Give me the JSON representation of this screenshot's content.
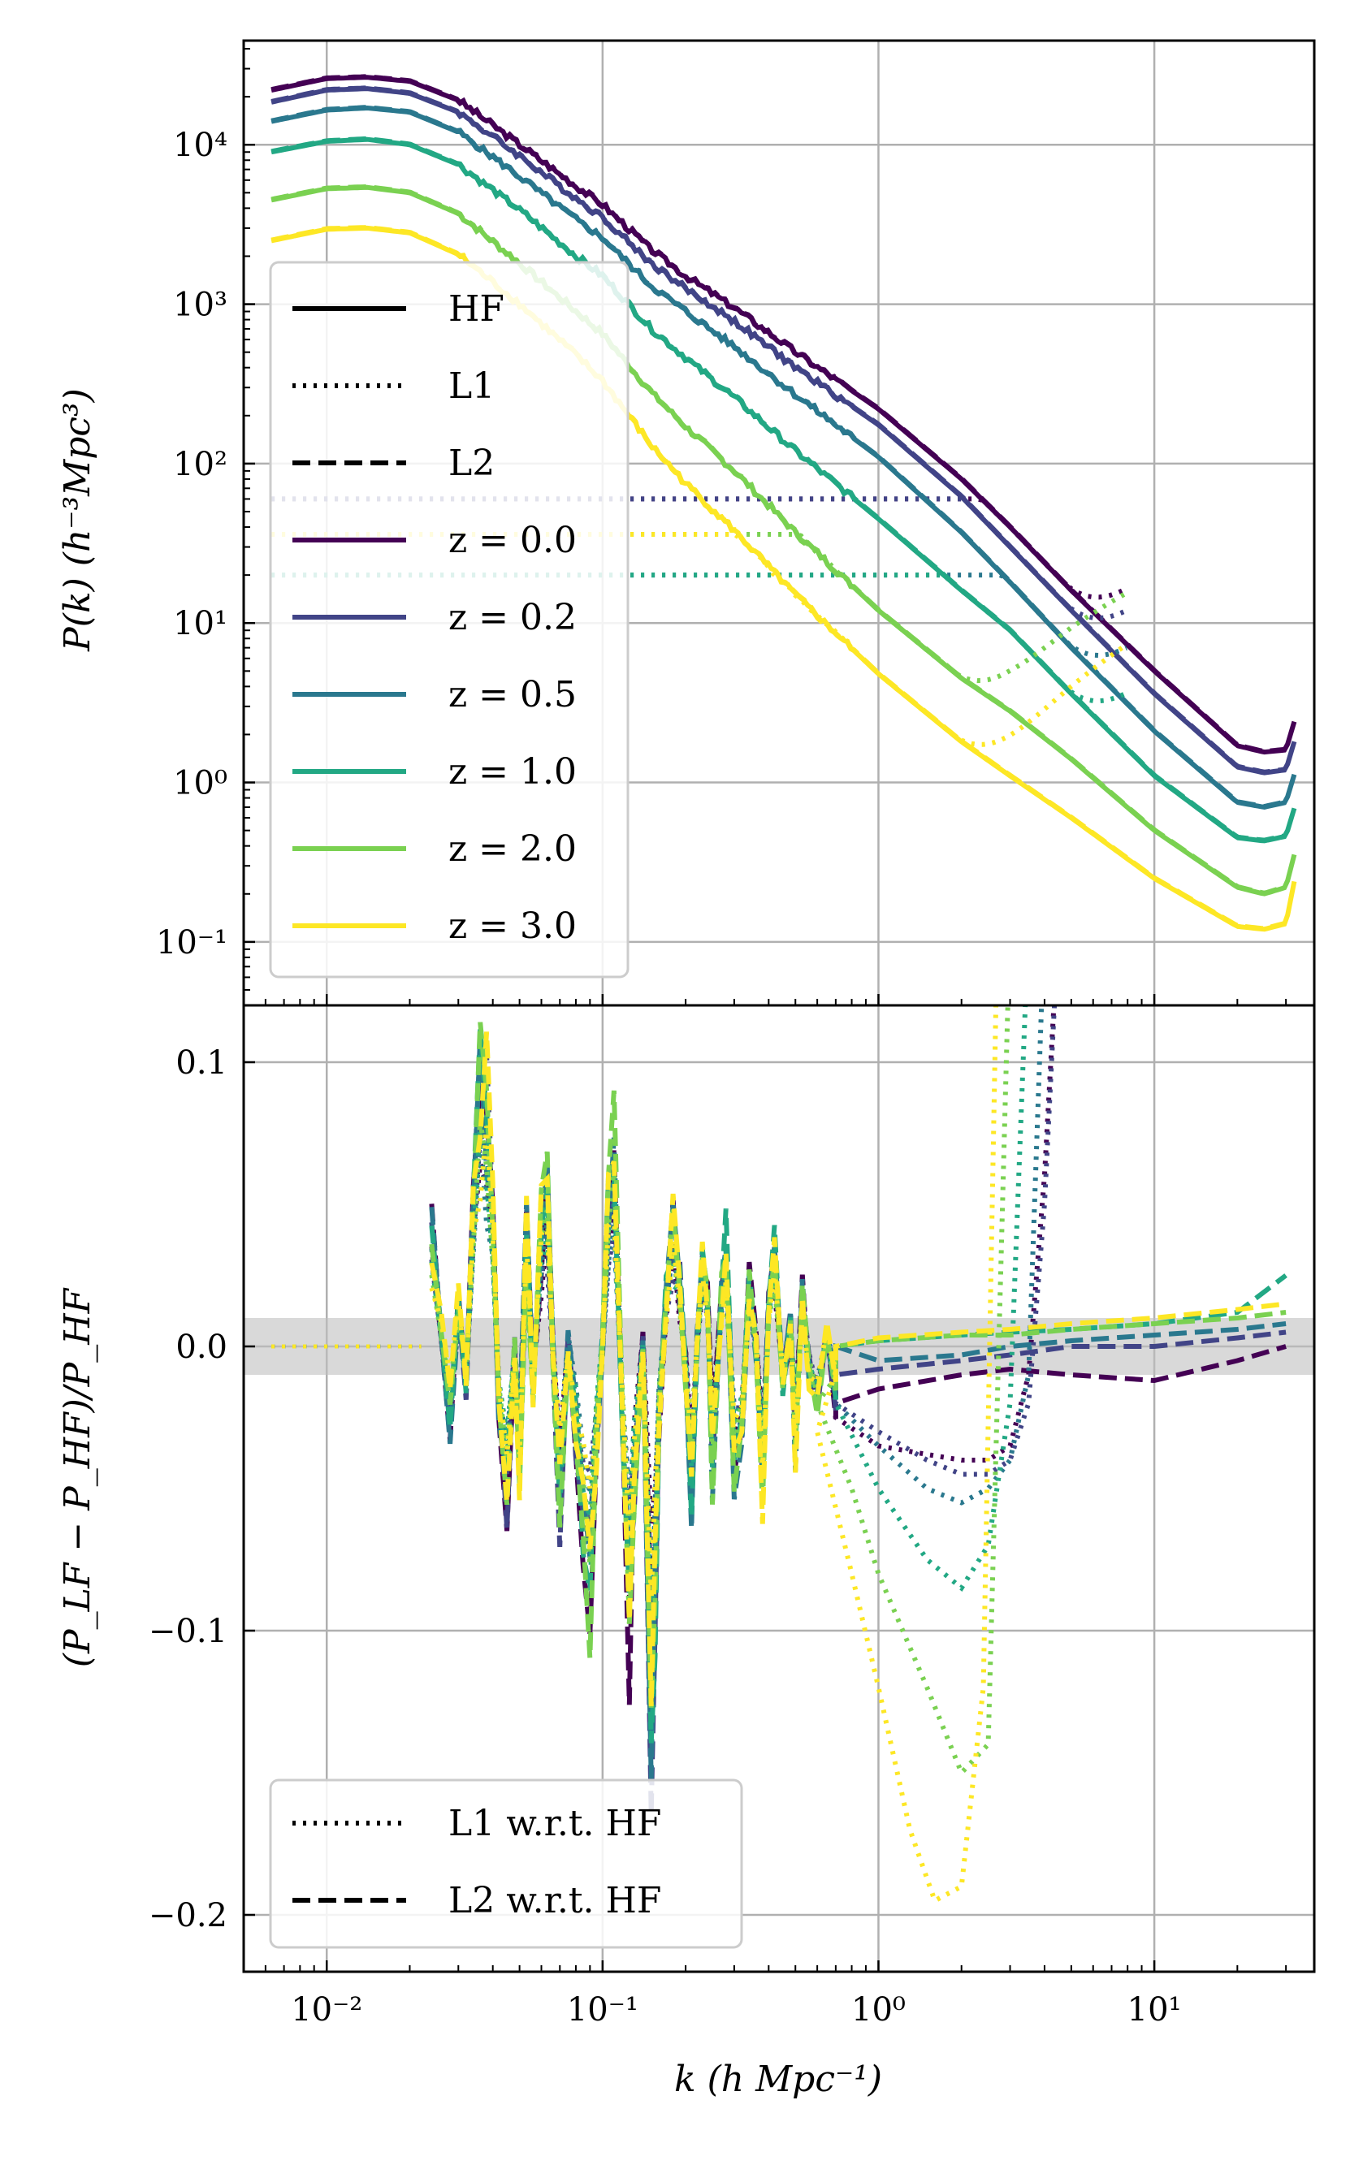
{
  "chart_data": [
    {
      "type": "line",
      "panel": "top",
      "xscale": "log",
      "yscale": "log",
      "xlim": [
        0.005,
        38
      ],
      "ylim": [
        0.04,
        45000
      ],
      "ylabel": "P(k) (h⁻³Mpc³)",
      "yticks": [
        {
          "v": 0.1,
          "label": "10⁻¹"
        },
        {
          "v": 1,
          "label": "10⁰"
        },
        {
          "v": 10,
          "label": "10¹"
        },
        {
          "v": 100,
          "label": "10²"
        },
        {
          "v": 1000,
          "label": "10³"
        },
        {
          "v": 10000,
          "label": "10⁴"
        }
      ],
      "grid": true,
      "legend_position": "lower-left",
      "legend": [
        {
          "label": "HF",
          "style": "solid",
          "color": "#000000"
        },
        {
          "label": "L1",
          "style": "dotted",
          "color": "#000000"
        },
        {
          "label": "L2",
          "style": "dashed",
          "color": "#000000"
        },
        {
          "label": "z = 0.0",
          "style": "solid",
          "color": "#440154"
        },
        {
          "label": "z = 0.2",
          "style": "solid",
          "color": "#414487"
        },
        {
          "label": "z = 0.5",
          "style": "solid",
          "color": "#2a788e"
        },
        {
          "label": "z = 1.0",
          "style": "solid",
          "color": "#22a884"
        },
        {
          "label": "z = 2.0",
          "style": "solid",
          "color": "#7ad151"
        },
        {
          "label": "z = 3.0",
          "style": "solid",
          "color": "#fde725"
        }
      ],
      "series": [
        {
          "name": "z = 0.0",
          "color": "#440154",
          "kmax_L1": 8,
          "k": [
            0.0063,
            0.01,
            0.014,
            0.02,
            0.03,
            0.05,
            0.08,
            0.1,
            0.15,
            0.2,
            0.3,
            0.5,
            1,
            2,
            3,
            5,
            10,
            20,
            25,
            30,
            33
          ],
          "HF": [
            22000,
            26000,
            26500,
            25000,
            19000,
            10000,
            5500,
            4200,
            2200,
            1500,
            950,
            500,
            220,
            80,
            40,
            16,
            5,
            1.7,
            1.55,
            1.6,
            2.8
          ]
        },
        {
          "name": "z = 0.2",
          "color": "#414487",
          "kmax_L1": 8,
          "k": [
            0.0063,
            0.01,
            0.014,
            0.02,
            0.03,
            0.05,
            0.08,
            0.1,
            0.15,
            0.2,
            0.3,
            0.5,
            1,
            2,
            3,
            5,
            10,
            20,
            25,
            30,
            33
          ],
          "HF": [
            18500,
            22000,
            22500,
            21000,
            16000,
            8500,
            4600,
            3500,
            1800,
            1250,
            780,
            400,
            175,
            62,
            30,
            12,
            3.6,
            1.25,
            1.15,
            1.2,
            2.1
          ]
        },
        {
          "name": "z = 0.5",
          "color": "#2a788e",
          "kmax_L1": 8,
          "k": [
            0.0063,
            0.01,
            0.014,
            0.02,
            0.03,
            0.05,
            0.08,
            0.1,
            0.15,
            0.2,
            0.3,
            0.5,
            1,
            2,
            3,
            5,
            10,
            20,
            25,
            30,
            33
          ],
          "HF": [
            14000,
            16500,
            17000,
            16000,
            12000,
            6300,
            3400,
            2600,
            1300,
            900,
            540,
            270,
            110,
            37,
            18,
            7,
            2.1,
            0.75,
            0.7,
            0.75,
            1.3
          ]
        },
        {
          "name": "z = 1.0",
          "color": "#22a884",
          "kmax_L1": 8,
          "k": [
            0.0063,
            0.01,
            0.014,
            0.02,
            0.03,
            0.05,
            0.08,
            0.1,
            0.15,
            0.2,
            0.3,
            0.5,
            1,
            2,
            3,
            5,
            10,
            20,
            25,
            30,
            33
          ],
          "HF": [
            9000,
            10500,
            10800,
            10000,
            7500,
            3900,
            2000,
            1500,
            700,
            460,
            260,
            120,
            45,
            16,
            9,
            3.6,
            1.1,
            0.45,
            0.43,
            0.46,
            0.8
          ]
        },
        {
          "name": "z = 2.0",
          "color": "#7ad151",
          "kmax_L1": 8,
          "k": [
            0.0063,
            0.01,
            0.014,
            0.02,
            0.03,
            0.05,
            0.08,
            0.1,
            0.15,
            0.2,
            0.3,
            0.5,
            1,
            2,
            3,
            5,
            10,
            20,
            25,
            30,
            33
          ],
          "HF": [
            4500,
            5300,
            5400,
            5000,
            3700,
            1800,
            900,
            650,
            280,
            170,
            90,
            37,
            12,
            4.5,
            2.8,
            1.4,
            0.5,
            0.22,
            0.2,
            0.22,
            0.42
          ]
        },
        {
          "name": "z = 3.0",
          "color": "#fde725",
          "kmax_L1": 8,
          "k": [
            0.0063,
            0.01,
            0.014,
            0.02,
            0.03,
            0.05,
            0.08,
            0.1,
            0.15,
            0.2,
            0.3,
            0.5,
            1,
            2,
            3,
            5,
            10,
            20,
            25,
            30,
            33
          ],
          "HF": [
            2500,
            2950,
            3000,
            2800,
            2050,
            1000,
            480,
            330,
            130,
            75,
            38,
            15,
            4.8,
            1.8,
            1.1,
            0.6,
            0.25,
            0.125,
            0.12,
            0.13,
            0.3
          ]
        }
      ]
    },
    {
      "type": "line",
      "panel": "bottom",
      "xscale": "log",
      "xlim": [
        0.005,
        38
      ],
      "ylim": [
        -0.22,
        0.12
      ],
      "xlabel": "k (h Mpc⁻¹)",
      "ylabel": "(P_LF − P_HF)/P_HF",
      "xticks": [
        {
          "v": 0.01,
          "label": "10⁻²"
        },
        {
          "v": 0.1,
          "label": "10⁻¹"
        },
        {
          "v": 1,
          "label": "10⁰"
        },
        {
          "v": 10,
          "label": "10¹"
        }
      ],
      "yticks": [
        {
          "v": 0.1,
          "label": "0.1"
        },
        {
          "v": 0.0,
          "label": "0.0"
        },
        {
          "v": -0.1,
          "label": "−0.1"
        },
        {
          "v": -0.2,
          "label": "−0.2"
        }
      ],
      "shaded_band": [
        -0.01,
        0.01
      ],
      "grid": true,
      "legend_position": "lower-left",
      "legend": [
        {
          "label": "L1 w.r.t. HF",
          "style": "dotted"
        },
        {
          "label": "L2 w.r.t. HF",
          "style": "dashed"
        }
      ],
      "noise_k": [
        0.024,
        0.026,
        0.028,
        0.03,
        0.032,
        0.034,
        0.036,
        0.038,
        0.04,
        0.042,
        0.045,
        0.048,
        0.05,
        0.053,
        0.056,
        0.06,
        0.063,
        0.066,
        0.07,
        0.075,
        0.08,
        0.085,
        0.09,
        0.095,
        0.1,
        0.105,
        0.11,
        0.118,
        0.125,
        0.13,
        0.14,
        0.15,
        0.155,
        0.16,
        0.17,
        0.18,
        0.19,
        0.2,
        0.21,
        0.22,
        0.23,
        0.24,
        0.25,
        0.27,
        0.28,
        0.3,
        0.32,
        0.34,
        0.36,
        0.38,
        0.4,
        0.42,
        0.45,
        0.48,
        0.5,
        0.53,
        0.56,
        0.6,
        0.65,
        0.7
      ],
      "noise_y": [
        0.05,
        0.01,
        -0.03,
        0.02,
        -0.02,
        0.05,
        0.11,
        0.1,
        0.06,
        -0.02,
        -0.06,
        0.0,
        -0.05,
        0.05,
        -0.02,
        0.05,
        0.07,
        0.0,
        -0.06,
        0.0,
        -0.04,
        -0.08,
        -0.1,
        -0.04,
        0.0,
        0.06,
        0.085,
        -0.03,
        -0.12,
        -0.06,
        0.0,
        -0.15,
        -0.1,
        -0.03,
        0.02,
        0.05,
        0.03,
        -0.01,
        -0.06,
        0.0,
        0.04,
        0.02,
        -0.05,
        0.02,
        0.04,
        -0.05,
        -0.03,
        0.03,
        0.0,
        -0.06,
        0.02,
        0.04,
        -0.02,
        0.01,
        -0.05,
        0.02,
        -0.01,
        -0.02,
        0.01,
        -0.02
      ],
      "series": [
        {
          "name": "z = 0.0",
          "color": "#440154",
          "L1": {
            "k": [
              0.7,
              1,
              1.5,
              2,
              2.5,
              3,
              3.5,
              4,
              4.5
            ],
            "y": [
              -0.025,
              -0.035,
              -0.038,
              -0.04,
              -0.04,
              -0.035,
              -0.01,
              0.06,
              0.15
            ]
          },
          "L2": {
            "k": [
              0.7,
              1,
              2,
              3,
              5,
              10,
              20,
              30
            ],
            "y": [
              -0.02,
              -0.015,
              -0.01,
              -0.008,
              -0.01,
              -0.012,
              -0.005,
              0.0
            ]
          }
        },
        {
          "name": "z = 0.2",
          "color": "#414487",
          "L1": {
            "k": [
              0.7,
              1,
              1.5,
              2,
              2.5,
              3,
              3.5,
              4,
              4.5
            ],
            "y": [
              -0.02,
              -0.03,
              -0.04,
              -0.045,
              -0.045,
              -0.04,
              -0.02,
              0.05,
              0.15
            ]
          },
          "L2": {
            "k": [
              0.7,
              1,
              2,
              3,
              5,
              10,
              20,
              30
            ],
            "y": [
              -0.01,
              -0.008,
              -0.005,
              -0.003,
              0.0,
              0.0,
              0.003,
              0.005
            ]
          }
        },
        {
          "name": "z = 0.5",
          "color": "#2a788e",
          "L1": {
            "k": [
              0.7,
              1,
              1.5,
              2,
              2.5,
              3,
              3.5,
              4
            ],
            "y": [
              -0.02,
              -0.035,
              -0.05,
              -0.055,
              -0.05,
              -0.04,
              -0.01,
              0.15
            ]
          },
          "L2": {
            "k": [
              0.7,
              1,
              2,
              3,
              5,
              10,
              20,
              30
            ],
            "y": [
              0.0,
              -0.005,
              -0.003,
              0.0,
              0.002,
              0.004,
              0.006,
              0.008
            ]
          }
        },
        {
          "name": "z = 1.0",
          "color": "#22a884",
          "L1": {
            "k": [
              0.7,
              1,
              1.5,
              2,
              2.5,
              3,
              3.5
            ],
            "y": [
              -0.02,
              -0.05,
              -0.075,
              -0.085,
              -0.07,
              -0.02,
              0.15
            ]
          },
          "L2": {
            "k": [
              0.7,
              1,
              2,
              3,
              5,
              10,
              20,
              30
            ],
            "y": [
              0.0,
              0.002,
              0.004,
              0.005,
              0.006,
              0.008,
              0.012,
              0.025
            ]
          }
        },
        {
          "name": "z = 2.0",
          "color": "#7ad151",
          "L1": {
            "k": [
              0.6,
              0.8,
              1,
              1.5,
              2,
              2.5,
              3
            ],
            "y": [
              -0.02,
              -0.05,
              -0.08,
              -0.12,
              -0.15,
              -0.14,
              0.15
            ]
          },
          "L2": {
            "k": [
              0.7,
              1,
              2,
              3,
              5,
              10,
              20,
              30
            ],
            "y": [
              0.0,
              0.002,
              0.004,
              0.004,
              0.006,
              0.008,
              0.01,
              0.012
            ]
          }
        },
        {
          "name": "z = 3.0",
          "color": "#fde725",
          "L1": {
            "k": [
              0.6,
              0.8,
              1,
              1.3,
              1.6,
              2,
              2.4,
              2.7
            ],
            "y": [
              -0.03,
              -0.08,
              -0.12,
              -0.17,
              -0.195,
              -0.19,
              -0.12,
              0.15
            ]
          },
          "L2": {
            "k": [
              0.7,
              1,
              2,
              3,
              5,
              10,
              20,
              30
            ],
            "y": [
              0.0,
              0.003,
              0.005,
              0.006,
              0.008,
              0.01,
              0.013,
              0.015
            ]
          }
        }
      ]
    }
  ]
}
